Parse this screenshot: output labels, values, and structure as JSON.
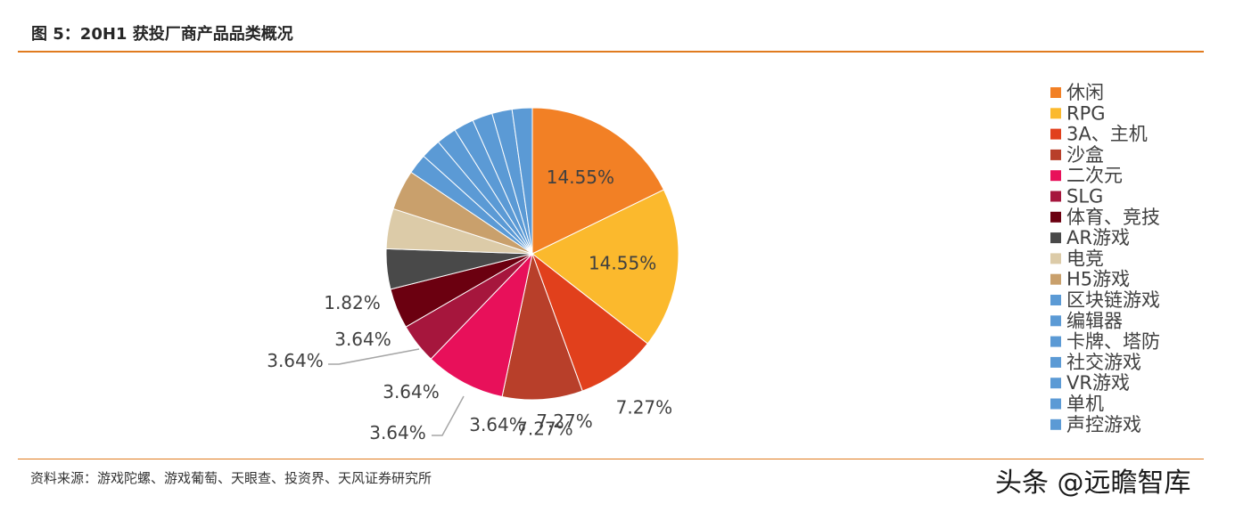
{
  "header": {
    "title": "图 5：20H1 获投厂商产品品类概况"
  },
  "footer": {
    "source": "资料来源：游戏陀螺、游戏葡萄、天眼查、投资界、天风证券研究所",
    "watermark": "头条 @远瞻智库"
  },
  "chart_data": {
    "type": "pie",
    "title": "",
    "legend_position": "right",
    "categories": [
      "休闲",
      "RPG",
      "3A、主机",
      "沙盒",
      "二次元",
      "SLG",
      "体育、竞技",
      "AR游戏",
      "电竞",
      "H5游戏",
      "区块链游戏",
      "编辑器",
      "卡牌、塔防",
      "社交游戏",
      "VR游戏",
      "单机",
      "声控游戏"
    ],
    "values": [
      14.55,
      14.55,
      7.27,
      7.27,
      7.27,
      3.64,
      3.64,
      3.64,
      3.64,
      3.64,
      1.82,
      1.82,
      1.82,
      1.82,
      1.82,
      1.82,
      1.82
    ],
    "data_labels": [
      "14.55%",
      "14.55%",
      "7.27%",
      "7.27%",
      "7.27%",
      "3.64%",
      "3.64%",
      "3.64%",
      "3.64%",
      "3.64%",
      "1.82%",
      "",
      "",
      "",
      "",
      "",
      ""
    ],
    "colors": [
      "#F28025",
      "#FBB92D",
      "#E1401C",
      "#B83F2A",
      "#E8105A",
      "#A6163D",
      "#6B0010",
      "#494949",
      "#DCCBA8",
      "#C9A06C",
      "#5B9AD5",
      "#5B9AD5",
      "#5B9AD5",
      "#5B9AD5",
      "#5B9AD5",
      "#5B9AD5",
      "#5B9AD5"
    ],
    "slice_border_color": "#FFFFFF"
  }
}
